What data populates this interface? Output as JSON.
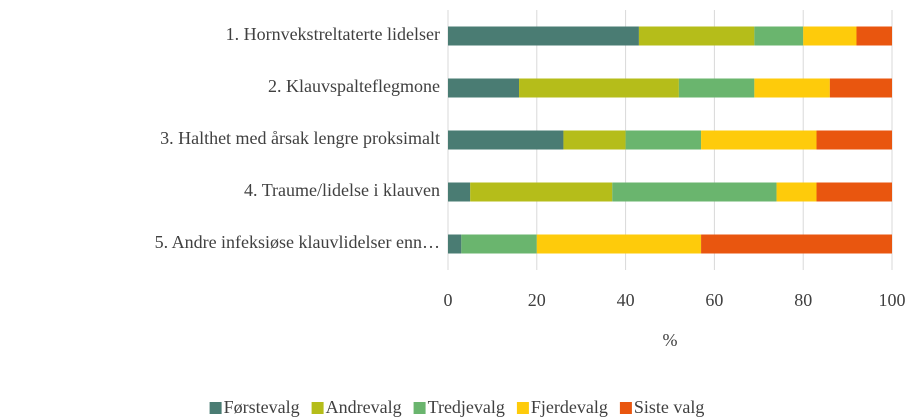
{
  "chart_data": {
    "type": "stacked_barh",
    "categories": [
      "1. Hornvekstreltaterte lidelser",
      "2. Klauvspalteflegmone",
      "3. Halthet med årsak lengre proksimalt",
      "4. Traume/lidelse i klauven",
      "5. Andre infeksiøse klauvlidelser enn…"
    ],
    "series": [
      {
        "name": "Førstevalg",
        "color": "#4a7c73",
        "values": [
          43,
          16,
          26,
          5,
          3
        ]
      },
      {
        "name": "Andrevalg",
        "color": "#b5bd1a",
        "values": [
          26,
          36,
          14,
          32,
          0
        ]
      },
      {
        "name": "Tredjevalg",
        "color": "#6ab56e",
        "values": [
          11,
          17,
          17,
          37,
          17
        ]
      },
      {
        "name": "Fjerdevalg",
        "color": "#fecb0b",
        "values": [
          12,
          17,
          26,
          9,
          37
        ]
      },
      {
        "name": "Siste valg",
        "color": "#e9560f",
        "values": [
          8,
          14,
          17,
          17,
          43
        ]
      }
    ],
    "xlabel": "%",
    "xlim": [
      0,
      100
    ],
    "xticks": [
      0,
      20,
      40,
      60,
      80,
      100
    ],
    "grid": true,
    "legend": "bottom"
  }
}
